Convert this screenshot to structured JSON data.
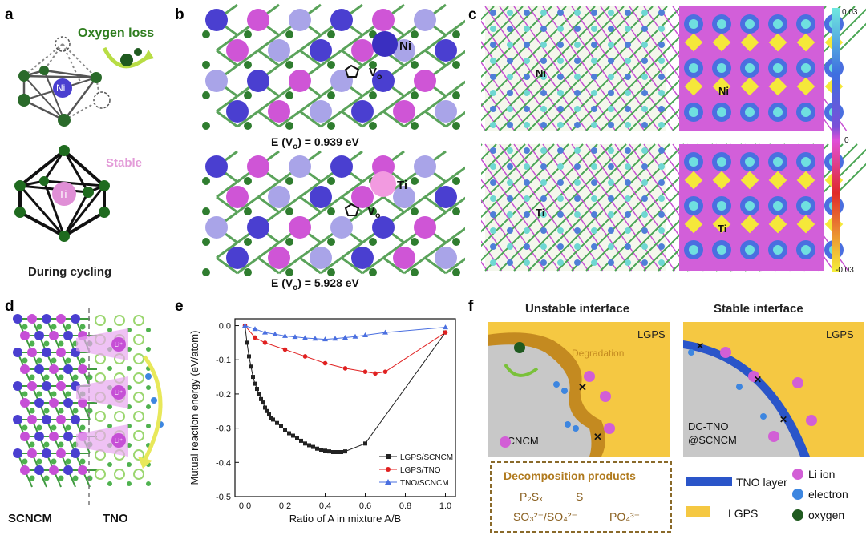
{
  "panel_labels": [
    "a",
    "b",
    "c",
    "d",
    "e",
    "f"
  ],
  "panel_a": {
    "oxygen_loss": "Oxygen loss",
    "ni": "Ni",
    "stable": "Stable",
    "ti": "Ti",
    "caption": "During cycling",
    "colors": {
      "ni": "#4a3fd0",
      "ti": "#e08fd6",
      "oxygen": "#1f6b1f",
      "oxygen_loss_text": "#2e7d1e",
      "stable_text": "#e39bd8"
    }
  },
  "panel_b": {
    "top_ion": "Ni",
    "top_vacancy": "V",
    "top_vacancy_sub": "o",
    "top_energy": "E (V",
    "top_energy_sub": "o",
    "top_energy_rest": ") = 0.939 eV",
    "bottom_ion": "Ti",
    "bottom_vacancy": "V",
    "bottom_vacancy_sub": "o",
    "bottom_energy": "E (V",
    "bottom_energy_sub": "o",
    "bottom_energy_rest": ") = 5.928 eV"
  },
  "panel_c": {
    "top_left_label": "Ni",
    "top_right_label": "Ni",
    "bottom_left_label": "Ti",
    "bottom_right_label": "Ti",
    "colorbar_max": "0.03",
    "colorbar_mid": "0",
    "colorbar_min": "-0.03"
  },
  "panel_d": {
    "left_label": "SCNCM",
    "right_label": "TNO",
    "li_label": "Li⁺"
  },
  "chart_data": {
    "type": "line",
    "xlabel": "Ratio of A in mixture A/B",
    "ylabel": "Mutual reaction energy (eV/atom)",
    "xlim": [
      -0.05,
      1.05
    ],
    "ylim": [
      -0.5,
      0.02
    ],
    "xticks": [
      "0.0",
      "0.2",
      "0.4",
      "0.6",
      "0.8",
      "1.0"
    ],
    "yticks": [
      "0.0",
      "-0.1",
      "-0.2",
      "-0.3",
      "-0.4",
      "-0.5"
    ],
    "legend_position": "bottom-right",
    "series": [
      {
        "name": "LGPS/SCNCM",
        "color": "#222222",
        "marker": "square",
        "x": [
          0.0,
          0.01,
          0.02,
          0.03,
          0.04,
          0.05,
          0.06,
          0.07,
          0.08,
          0.09,
          0.1,
          0.11,
          0.12,
          0.13,
          0.14,
          0.16,
          0.18,
          0.2,
          0.22,
          0.24,
          0.26,
          0.28,
          0.3,
          0.32,
          0.34,
          0.36,
          0.38,
          0.4,
          0.42,
          0.44,
          0.46,
          0.48,
          0.5,
          0.6,
          1.0
        ],
        "y": [
          0.0,
          -0.05,
          -0.09,
          -0.12,
          -0.15,
          -0.17,
          -0.185,
          -0.2,
          -0.215,
          -0.225,
          -0.24,
          -0.25,
          -0.26,
          -0.27,
          -0.275,
          -0.285,
          -0.295,
          -0.305,
          -0.315,
          -0.322,
          -0.33,
          -0.337,
          -0.345,
          -0.35,
          -0.355,
          -0.36,
          -0.363,
          -0.366,
          -0.368,
          -0.37,
          -0.37,
          -0.37,
          -0.368,
          -0.345,
          -0.02
        ]
      },
      {
        "name": "LGPS/TNO",
        "color": "#e02020",
        "marker": "circle",
        "x": [
          0.0,
          0.05,
          0.1,
          0.2,
          0.3,
          0.4,
          0.5,
          0.6,
          0.65,
          0.7,
          1.0
        ],
        "y": [
          0.0,
          -0.035,
          -0.05,
          -0.07,
          -0.09,
          -0.11,
          -0.125,
          -0.135,
          -0.14,
          -0.135,
          -0.02
        ]
      },
      {
        "name": "TNO/SCNCM",
        "color": "#4a6fe0",
        "marker": "triangle",
        "x": [
          0.0,
          0.05,
          0.1,
          0.15,
          0.2,
          0.25,
          0.3,
          0.35,
          0.4,
          0.45,
          0.5,
          0.55,
          0.6,
          0.7,
          1.0
        ],
        "y": [
          0.0,
          -0.01,
          -0.02,
          -0.025,
          -0.03,
          -0.033,
          -0.036,
          -0.038,
          -0.04,
          -0.038,
          -0.035,
          -0.032,
          -0.028,
          -0.02,
          -0.005
        ]
      }
    ]
  },
  "panel_f": {
    "left_title": "Unstable interface",
    "right_title": "Stable interface",
    "lgps_left": "LGPS",
    "lgps_right": "LGPS",
    "degradation": "Degradation",
    "scncm": "SCNCM",
    "dc_tno_line1": "DC-TNO",
    "dc_tno_line2": "@SCNCM",
    "decomp_title": "Decomposition products",
    "decomp_row1_a": "P₂Sₓ",
    "decomp_row1_b": "S",
    "decomp_row2_a": "SO₃²⁻/SO₄²⁻",
    "decomp_row2_b": "PO₄³⁻",
    "legend_tno": "TNO layer",
    "legend_lgps": "LGPS",
    "legend_li": "Li ion",
    "legend_electron": "electron",
    "legend_oxygen": "oxygen",
    "colors": {
      "lgps": "#f5c842",
      "scncm": "#c8c8c8",
      "degradation": "#c48a20",
      "tno": "#2a55c9",
      "li": "#d25fd6",
      "electron": "#3d86e0",
      "decomp_title": "#b07a1e",
      "decomp_border": "#8a6a2a"
    }
  }
}
